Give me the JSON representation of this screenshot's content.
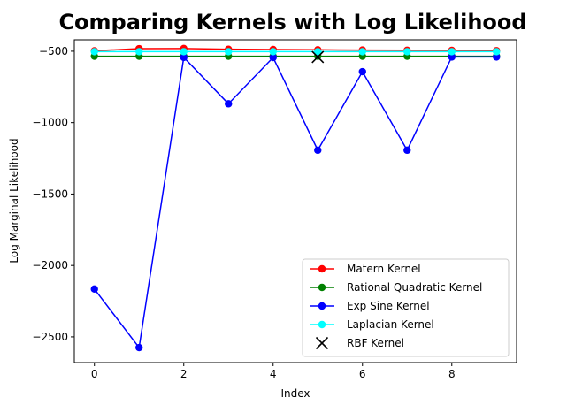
{
  "chart_data": {
    "type": "line",
    "title": "Comparing Kernels with Log Likelihood",
    "xlabel": "Index",
    "ylabel": "Log Marginal Likelihood",
    "xlim": [
      -0.45,
      9.45
    ],
    "ylim": [
      -2680,
      -420
    ],
    "xticks": [
      0,
      2,
      4,
      6,
      8
    ],
    "xtick_labels": [
      "0",
      "2",
      "4",
      "6",
      "8"
    ],
    "yticks": [
      -2500,
      -2000,
      -1500,
      -1000,
      -500
    ],
    "ytick_labels": [
      "−2500",
      "−2000",
      "−1500",
      "−1000",
      "−500"
    ],
    "grid": false,
    "legend_position": "lower-right",
    "x": [
      0,
      1,
      2,
      3,
      4,
      5,
      6,
      7,
      8,
      9
    ],
    "series": [
      {
        "name": "Matern Kernel",
        "color": "#ff0000",
        "marker": "circle",
        "values": [
          -497,
          -482,
          -481,
          -486,
          -488,
          -490,
          -492,
          -493,
          -494,
          -496
        ]
      },
      {
        "name": "Rational Quadratic Kernel",
        "color": "#008000",
        "marker": "circle",
        "values": [
          -535,
          -535,
          -535,
          -535,
          -535,
          -535,
          -535,
          -535,
          -535,
          -535
        ]
      },
      {
        "name": "Exp Sine Kernel",
        "color": "#0000ff",
        "marker": "circle",
        "values": [
          -2165,
          -2575,
          -543,
          -868,
          -544,
          -1193,
          -643,
          -1193,
          -540,
          -540
        ]
      },
      {
        "name": "Laplacian Kernel",
        "color": "#00ffff",
        "marker": "circle",
        "values": [
          -503,
          -503,
          -503,
          -503,
          -503,
          -503,
          -503,
          -503,
          -503,
          -503
        ]
      }
    ],
    "points": [
      {
        "name": "RBF Kernel",
        "color": "#000000",
        "marker": "x",
        "x": 5,
        "y": -540
      }
    ]
  }
}
